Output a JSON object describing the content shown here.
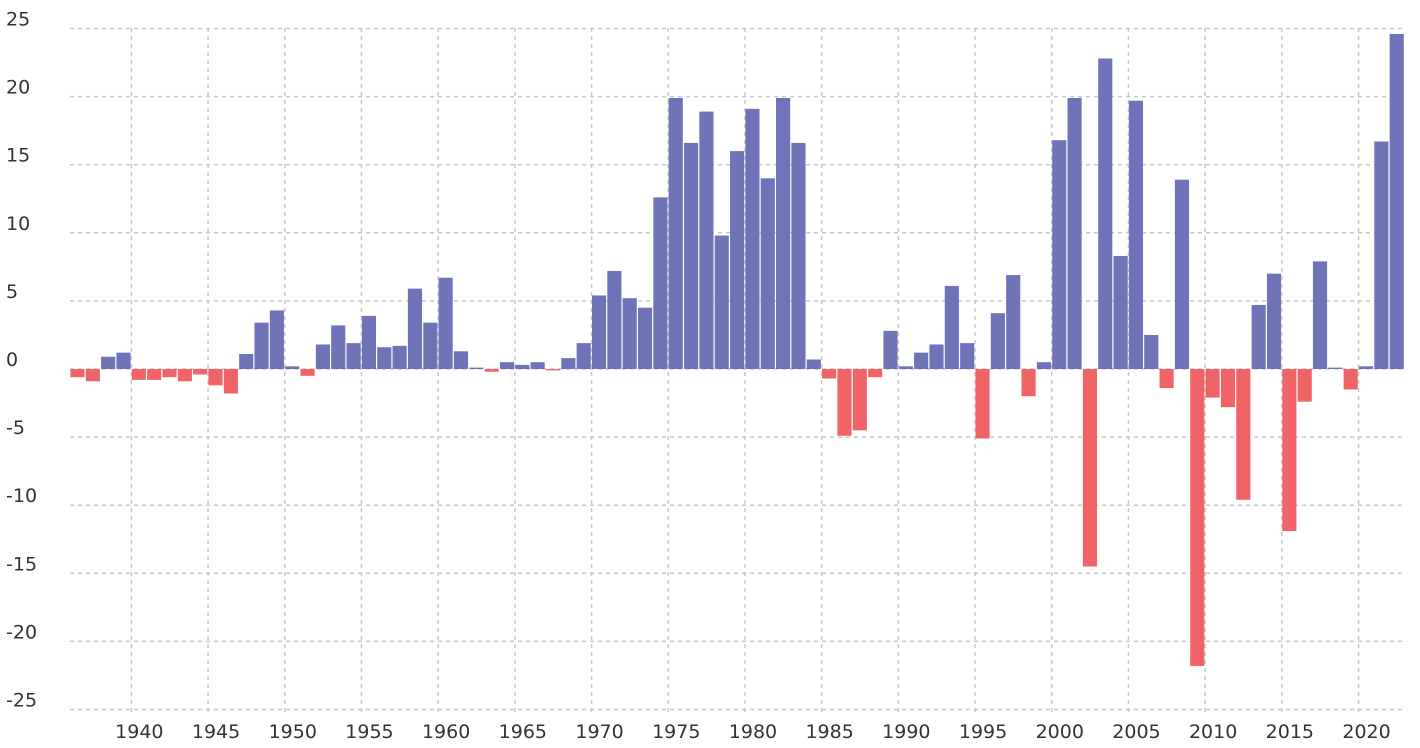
{
  "chart_data": {
    "type": "bar",
    "title": "",
    "xlabel": "",
    "ylabel": "",
    "ylim": [
      -25,
      25
    ],
    "y_ticks": [
      "25",
      "20",
      "15",
      "10",
      "5",
      "0",
      "-5",
      "-10",
      "-15",
      "-20",
      "-25"
    ],
    "x_ticks": [
      "1940",
      "1945",
      "1950",
      "1955",
      "1960",
      "1965",
      "1970",
      "1975",
      "1980",
      "1985",
      "1990",
      "1995",
      "2000",
      "2005",
      "2010",
      "2015",
      "2020"
    ],
    "grid": true,
    "colors": {
      "positive": "#6f73b8",
      "negative": "#f06468",
      "grid": "#c8c8c8",
      "text": "#333333"
    },
    "x": [
      1936,
      1937,
      1938,
      1939,
      1940,
      1941,
      1942,
      1943,
      1944,
      1945,
      1946,
      1947,
      1948,
      1949,
      1950,
      1951,
      1952,
      1953,
      1954,
      1955,
      1956,
      1957,
      1958,
      1959,
      1960,
      1961,
      1962,
      1963,
      1964,
      1965,
      1966,
      1967,
      1968,
      1969,
      1970,
      1971,
      1972,
      1973,
      1974,
      1975,
      1976,
      1977,
      1978,
      1979,
      1980,
      1981,
      1982,
      1983,
      1984,
      1985,
      1986,
      1987,
      1988,
      1989,
      1990,
      1991,
      1992,
      1993,
      1994,
      1995,
      1996,
      1997,
      1998,
      1999,
      2000,
      2001,
      2002,
      2003,
      2004,
      2005,
      2006,
      2007,
      2008,
      2009,
      2010,
      2011,
      2012,
      2013,
      2014,
      2015,
      2016,
      2017,
      2018,
      2019,
      2020,
      2021,
      2022
    ],
    "values": [
      -0.6,
      -0.9,
      0.9,
      1.2,
      -0.8,
      -0.8,
      -0.6,
      -0.9,
      -0.4,
      -1.2,
      -1.8,
      1.1,
      3.4,
      4.3,
      0.2,
      -0.5,
      1.8,
      3.2,
      1.9,
      3.9,
      1.6,
      1.7,
      5.9,
      3.4,
      6.7,
      1.3,
      0.1,
      -0.2,
      0.5,
      0.3,
      0.5,
      -0.1,
      0.8,
      1.9,
      5.4,
      7.2,
      5.2,
      4.5,
      12.6,
      19.9,
      16.6,
      18.9,
      9.8,
      16.0,
      19.1,
      14.0,
      19.9,
      16.6,
      0.7,
      -0.7,
      -4.9,
      -4.5,
      -0.6,
      2.8,
      0.2,
      1.2,
      1.8,
      6.1,
      1.9,
      -5.1,
      4.1,
      6.9,
      -2.0,
      0.5,
      16.8,
      19.9,
      -14.5,
      22.8,
      8.3,
      19.7,
      2.5,
      -1.4,
      13.9,
      -21.8,
      -2.1,
      -2.8,
      -9.6,
      4.7,
      7.0,
      -11.9,
      -2.4,
      7.9,
      0.1,
      -1.5,
      0.2,
      16.7,
      24.6
    ]
  }
}
